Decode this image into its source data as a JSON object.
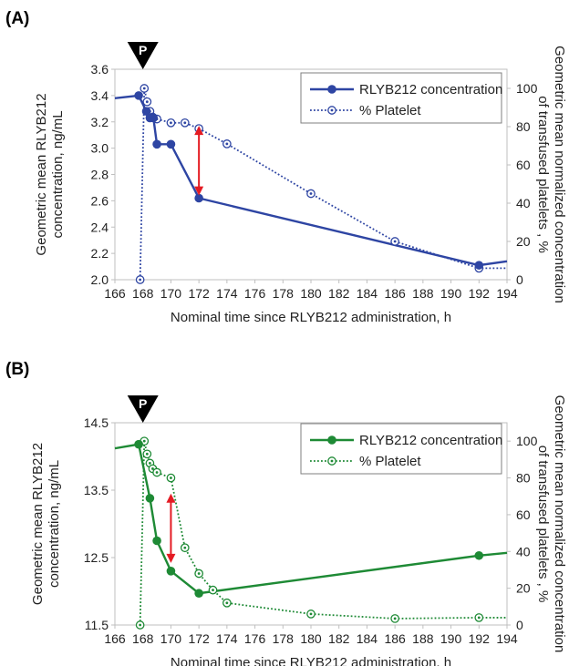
{
  "chart_data": [
    {
      "type": "line",
      "panel_label": "(A)",
      "xlabel": "Nominal time since RLYB212 administration, h",
      "ylabel_left": [
        "Geometric mean RLYB212",
        "concentration, ng/mL"
      ],
      "ylabel_right": [
        "Geometric mean normalized concentration",
        "of transfused platelets , %"
      ],
      "xlim": [
        166,
        194
      ],
      "ylim_left": [
        2.0,
        3.6
      ],
      "ylim_right": [
        0,
        110
      ],
      "x_ticks": [
        "166",
        "168",
        "170",
        "172",
        "174",
        "176",
        "178",
        "180",
        "182",
        "184",
        "186",
        "188",
        "190",
        "192",
        "194"
      ],
      "y_left_ticks": [
        "2.0",
        "2.2",
        "2.4",
        "2.6",
        "2.8",
        "3.0",
        "3.2",
        "3.4",
        "3.6"
      ],
      "y_right_ticks": [
        "0",
        "20",
        "40",
        "60",
        "80",
        "100"
      ],
      "marker_label": "P",
      "marker_x": 168,
      "color": "#2e45a3",
      "legend": [
        "RLYB212 concentration",
        "% Platelet"
      ],
      "series": [
        {
          "name": "RLYB212 concentration",
          "axis": "left",
          "style": "solid",
          "x": [
            166,
            167.7,
            168.25,
            168.5,
            168.75,
            169,
            170,
            172,
            192,
            194
          ],
          "y": [
            3.38,
            3.4,
            3.28,
            3.23,
            3.23,
            3.03,
            3.03,
            2.62,
            2.11,
            2.14
          ],
          "marker_x": [
            167.7,
            168.25,
            168.5,
            168.75,
            169,
            170,
            172,
            192
          ]
        },
        {
          "name": "% Platelet",
          "axis": "right",
          "style": "dotted",
          "x": [
            167.8,
            168.1,
            168.3,
            168.5,
            168.7,
            169,
            170,
            171,
            172,
            174,
            180,
            186,
            192,
            194
          ],
          "y": [
            0,
            100,
            93,
            88,
            85,
            84,
            82,
            82,
            79,
            71,
            45,
            20,
            6,
            6
          ],
          "marker_x": [
            167.8,
            168.1,
            168.3,
            168.5,
            168.7,
            169,
            170,
            171,
            172,
            174,
            180,
            186,
            192
          ]
        }
      ],
      "arrow": {
        "x": 172,
        "y_from": 3.17,
        "y_to": 2.64,
        "color": "#e41b23"
      }
    },
    {
      "type": "line",
      "panel_label": "(B)",
      "xlabel": "Nominal time since RLYB212 administration, h",
      "ylabel_left": [
        "Geometric mean RLYB212",
        "concentration, ng/mL"
      ],
      "ylabel_right": [
        "Geometric mean normalized concentration",
        "of transfused platelets , %"
      ],
      "xlim": [
        166,
        194
      ],
      "ylim_left": [
        11.5,
        14.5
      ],
      "ylim_right": [
        0,
        110
      ],
      "x_ticks": [
        "166",
        "168",
        "170",
        "172",
        "174",
        "176",
        "178",
        "180",
        "182",
        "184",
        "186",
        "188",
        "190",
        "192",
        "194"
      ],
      "y_left_ticks": [
        "11.5",
        "12.5",
        "13.5",
        "14.5"
      ],
      "y_right_ticks": [
        "0",
        "20",
        "40",
        "60",
        "80",
        "100"
      ],
      "marker_label": "P",
      "marker_x": 168,
      "color": "#1e8a35",
      "legend": [
        "RLYB212 concentration",
        "% Platelet"
      ],
      "series": [
        {
          "name": "RLYB212 concentration",
          "axis": "left",
          "style": "solid",
          "x": [
            166,
            167.7,
            168.5,
            169,
            170,
            172,
            192,
            194
          ],
          "y": [
            14.12,
            14.18,
            13.38,
            12.75,
            12.3,
            11.97,
            12.53,
            12.57
          ],
          "marker_x": [
            167.7,
            168.5,
            169,
            170,
            172,
            192
          ]
        },
        {
          "name": "% Platelet",
          "axis": "right",
          "style": "dotted",
          "x": [
            167.8,
            168.1,
            168.3,
            168.5,
            168.7,
            169,
            170,
            171,
            172,
            173,
            174,
            180,
            186,
            192,
            194
          ],
          "y": [
            0,
            100,
            93,
            88,
            85,
            83,
            80,
            42,
            28,
            19,
            12,
            6,
            3.5,
            4,
            4
          ],
          "marker_x": [
            167.8,
            168.1,
            168.3,
            168.5,
            168.7,
            169,
            170,
            171,
            172,
            173,
            174,
            180,
            186,
            192
          ]
        }
      ],
      "arrow": {
        "x": 170,
        "y_from": 13.45,
        "y_to": 12.42,
        "color": "#e41b23"
      }
    }
  ]
}
